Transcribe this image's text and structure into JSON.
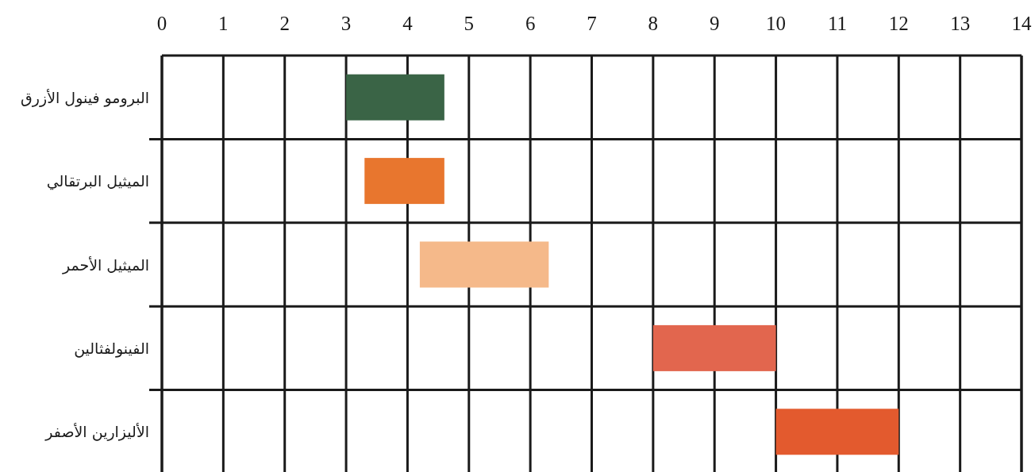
{
  "chart_data": {
    "type": "bar",
    "orientation": "horizontal",
    "categories": [
      "البرومو فينول الأزرق",
      "الميثيل البرتقالي",
      "الميثيل الأحمر",
      "الفينولفثالين",
      "الأليزارين الأصفر"
    ],
    "base": [
      3.0,
      3.3,
      4.2,
      8.0,
      10.0
    ],
    "values": [
      1.6,
      1.3,
      2.1,
      2.0,
      2.0
    ],
    "colors": [
      "#3a6446",
      "#e8762e",
      "#f5b98a",
      "#e2664e",
      "#e35a2e"
    ],
    "xlim": [
      0,
      14
    ],
    "xticks": [
      0,
      1,
      2,
      3,
      4,
      5,
      6,
      7,
      8,
      9,
      10,
      11,
      12,
      13,
      14
    ],
    "grid": true
  }
}
